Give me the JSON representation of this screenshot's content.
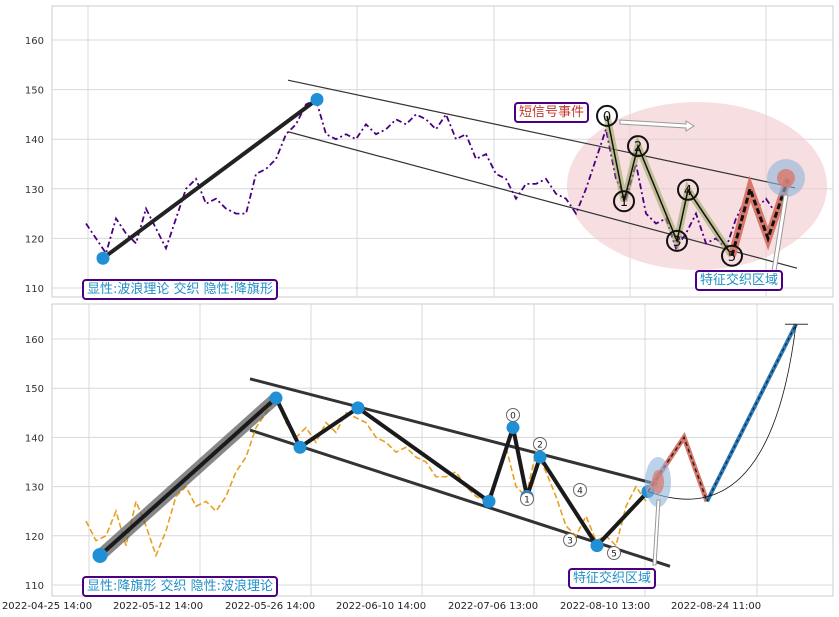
{
  "chart_data": [
    {
      "type": "line",
      "panel": "top",
      "ylim": [
        108,
        167
      ],
      "y_ticks": [
        110,
        120,
        130,
        140,
        150,
        160
      ],
      "grid": true,
      "series": [
        {
          "style": "dash-dot",
          "color": "#4b0082",
          "values": [
            123,
            120,
            117,
            124,
            121,
            119,
            126,
            122,
            118,
            124,
            130,
            132,
            127,
            128,
            126,
            125,
            125,
            133,
            134,
            136,
            141,
            143,
            147,
            148,
            141,
            140,
            141,
            140,
            143,
            141,
            142,
            144,
            143,
            145,
            144,
            142,
            145,
            140,
            141,
            136,
            137,
            133,
            132,
            128,
            131,
            131,
            132,
            129,
            128,
            125,
            130,
            136,
            142,
            132,
            128,
            135,
            125,
            123,
            124,
            118,
            121,
            125,
            119,
            120,
            118,
            124,
            128,
            126,
            128,
            125,
            130
          ]
        }
      ],
      "pivots": [
        116,
        148
      ],
      "wave_points": [
        {
          "label": "0",
          "value": 144.7
        },
        {
          "label": "1",
          "value": 127.5
        },
        {
          "label": "2",
          "value": 138.6
        },
        {
          "label": "3",
          "value": 119.5
        },
        {
          "label": "4",
          "value": 129.8
        },
        {
          "label": "5",
          "value": 116.5
        }
      ],
      "tail_values": [
        130,
        120,
        132
      ],
      "channel": {
        "upper": [
          151.9,
          130.2
        ],
        "lower": [
          141.5,
          114.0
        ]
      },
      "annotations": {
        "pattern_label": "显性:波浪理论 交织 隐性:降旗形",
        "zone_label": "特征交织区域",
        "event_label": "短信号事件"
      },
      "colors": {
        "event": "#c0392b",
        "zone": "#1f8fc8",
        "box": "#4b0082",
        "ellipse": "#f2c8cc"
      }
    },
    {
      "type": "line",
      "panel": "bottom",
      "ylim": [
        108,
        167
      ],
      "y_ticks": [
        110,
        120,
        130,
        140,
        150,
        160
      ],
      "x_ticks": [
        "2022-04-25 14:00",
        "2022-05-12 14:00",
        "2022-05-26 14:00",
        "2022-06-10 14:00",
        "2022-07-06 13:00",
        "2022-08-10 13:00",
        "2022-08-24 11:00"
      ],
      "grid": true,
      "series": [
        {
          "style": "dashed",
          "color": "#e8a020",
          "values": [
            123,
            119,
            120,
            125,
            118,
            127,
            122,
            116,
            121,
            128,
            130,
            126,
            127,
            125,
            128,
            133,
            136,
            142,
            145,
            148,
            143,
            140,
            142,
            139,
            143,
            141,
            145,
            144,
            143,
            140,
            139,
            137,
            138,
            136,
            135,
            132,
            132,
            133,
            130,
            128,
            127,
            131,
            138,
            130,
            128,
            137,
            133,
            128,
            122,
            120,
            124,
            119,
            120,
            118,
            126,
            130,
            127
          ]
        }
      ],
      "pivots": [
        116,
        148,
        138,
        146,
        127,
        142,
        128,
        136,
        118,
        129
      ],
      "wave_points": [
        {
          "label": "0",
          "value": 142
        },
        {
          "label": "1",
          "value": 128
        },
        {
          "label": "2",
          "value": 136
        },
        {
          "label": "3",
          "value": 120
        },
        {
          "label": "4",
          "value": 128
        },
        {
          "label": "5",
          "value": 118
        }
      ],
      "projection": [
        129,
        140,
        127,
        163
      ],
      "channel": {
        "upper": [
          151.9,
          130.5
        ],
        "lower": [
          141.5,
          113.8
        ]
      },
      "annotations": {
        "pattern_label": "显性:降旗形 交织 隐性:波浪理论",
        "zone_label": "特征交织区域"
      },
      "colors": {
        "zone": "#1f8fc8",
        "box": "#4b0082",
        "projection": "#2a7ab8"
      }
    }
  ]
}
